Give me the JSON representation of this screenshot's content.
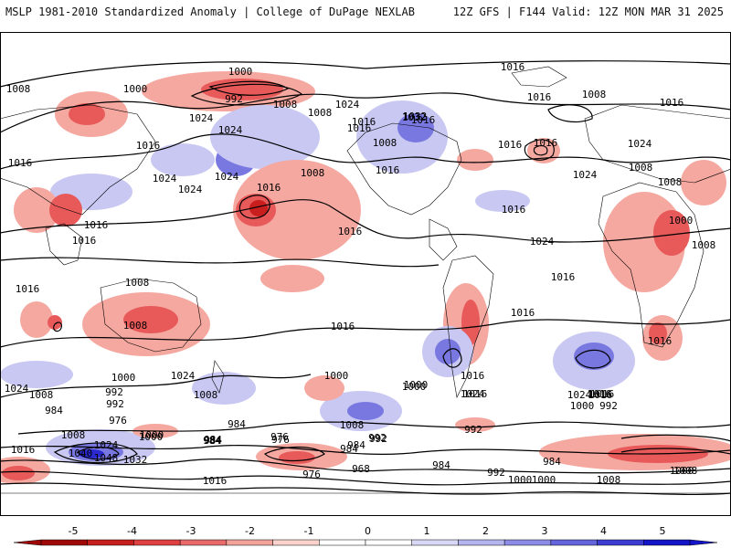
{
  "header": {
    "left": "MSLP 1981-2010 Standardized Anomaly | College of DuPage NEXLAB",
    "right": "12Z GFS | F144 Valid: 12Z MON MAR 31 2025"
  },
  "colors": {
    "neg_strong": "#c81e1e",
    "neg_mid": "#e85a5a",
    "neg_light": "#f5a8a0",
    "pos_light": "#c8c8f2",
    "pos_mid": "#7878e0",
    "pos_strong": "#2a2ad0",
    "contour": "#000000",
    "coast": "#000000"
  },
  "isobar_labels": [
    "1000",
    "992",
    "1008",
    "1008",
    "1000",
    "1008",
    "1016",
    "1024",
    "1016",
    "1024",
    "1016",
    "1024",
    "1024",
    "1032",
    "1024",
    "1008",
    "1016",
    "1016",
    "1016",
    "1016",
    "1016",
    "1024",
    "1032",
    "1016",
    "1016",
    "1024",
    "1016",
    "1008",
    "1016",
    "1024",
    "1008",
    "1008",
    "1016",
    "1024",
    "1016",
    "1016",
    "1000",
    "1008",
    "1008",
    "1008",
    "1008",
    "1016",
    "1016",
    "1016",
    "1016",
    "1024",
    "1008",
    "1016",
    "1016",
    "1016",
    "1024",
    "1000",
    "992",
    "1000",
    "1016",
    "1024",
    "1016",
    "1000",
    "1008",
    "1016",
    "1024",
    "1008",
    "1016",
    "1000",
    "992",
    "1000",
    "1016",
    "984",
    "976",
    "992",
    "1000",
    "984",
    "984",
    "984",
    "1008",
    "1024",
    "1040",
    "1048",
    "1032",
    "1000",
    "984",
    "976",
    "984",
    "992",
    "968",
    "976",
    "1000",
    "992",
    "984",
    "992",
    "1000",
    "1008",
    "1016",
    "984",
    "976",
    "984",
    "992",
    "1008",
    "1000"
  ],
  "colorbar": {
    "ticks": [
      "-5",
      "-4",
      "-3",
      "-2",
      "-1",
      "0",
      "1",
      "2",
      "3",
      "4",
      "5"
    ],
    "colors": [
      "#a00808",
      "#c81e1e",
      "#e04040",
      "#e86a6a",
      "#f3a39a",
      "#fbd3cc",
      "#ffffff",
      "#ffffff",
      "#d8d8f6",
      "#b4b4ee",
      "#8c8ce6",
      "#6464dc",
      "#3c3cd2",
      "#1414c8"
    ]
  }
}
